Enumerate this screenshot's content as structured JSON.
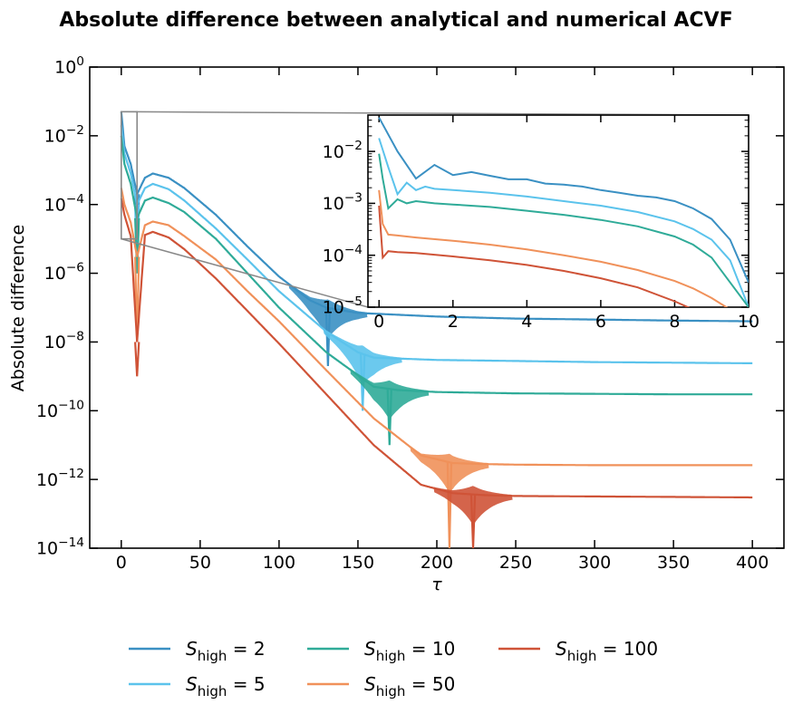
{
  "chart_data": [
    {
      "type": "line",
      "title": "Absolute difference between analytical and numerical ACVF",
      "xlabel": "τ",
      "ylabel": "Absolute difference",
      "xlim": [
        -20,
        420
      ],
      "ylim_log10": [
        -14,
        0
      ],
      "yscale": "log",
      "x_ticks": [
        0,
        50,
        100,
        150,
        200,
        250,
        300,
        350,
        400
      ],
      "x_tick_labels": [
        "0",
        "50",
        "100",
        "150",
        "200",
        "250",
        "300",
        "350",
        "400"
      ],
      "y_ticks_exp": [
        0,
        -2,
        -4,
        -6,
        -8,
        -10,
        -12,
        -14
      ],
      "y_tick_labels": [
        {
          "base": "10",
          "exp": "0"
        },
        {
          "base": "10",
          "exp": "−2"
        },
        {
          "base": "10",
          "exp": "−4"
        },
        {
          "base": "10",
          "exp": "−6"
        },
        {
          "base": "10",
          "exp": "−8"
        },
        {
          "base": "10",
          "exp": "−10"
        },
        {
          "base": "10",
          "exp": "−12"
        },
        {
          "base": "10",
          "exp": "−14"
        }
      ],
      "legend": {
        "placement": "below",
        "columns": 3
      },
      "series": [
        {
          "name": "S_high = 2",
          "label_main": "S",
          "label_sub": "high",
          "label_rest": " = 2",
          "color": "#3a90c3",
          "x": [
            0,
            2,
            6,
            10,
            15,
            20,
            30,
            40,
            60,
            80,
            100,
            120,
            130,
            150,
            200,
            250,
            300,
            350,
            400
          ],
          "y": [
            0.05,
            0.005,
            0.0015,
            0.0002,
            0.0006,
            0.0008,
            0.0006,
            0.0003,
            5e-05,
            6e-06,
            8e-07,
            1.6e-07,
            1e-07,
            7e-08,
            5.5e-08,
            4.8e-08,
            4.5e-08,
            4.2e-08,
            4e-08
          ],
          "dips": [
            [
              10,
              1e-06
            ],
            [
              131,
              2e-09
            ]
          ]
        },
        {
          "name": "S_high = 5",
          "label_main": "S",
          "label_sub": "high",
          "label_rest": " = 5",
          "color": "#5bc3ec",
          "x": [
            0,
            2,
            6,
            10,
            15,
            20,
            30,
            40,
            60,
            80,
            100,
            130,
            150,
            160,
            200,
            250,
            300,
            350,
            400
          ],
          "y": [
            0.02,
            0.003,
            0.0008,
            0.0001,
            0.0003,
            0.0004,
            0.00028,
            0.00013,
            2e-05,
            2.5e-06,
            3e-07,
            2e-08,
            5e-09,
            3.5e-09,
            3e-09,
            2.8e-09,
            2.6e-09,
            2.5e-09,
            2.4e-09
          ],
          "dips": [
            [
              10,
              1e-06
            ],
            [
              153,
              1e-10
            ]
          ]
        },
        {
          "name": "S_high = 10",
          "label_main": "S",
          "label_sub": "high",
          "label_rest": " = 10",
          "color": "#2fab98",
          "x": [
            0,
            2,
            6,
            10,
            15,
            20,
            30,
            40,
            60,
            80,
            100,
            130,
            160,
            175,
            200,
            250,
            300,
            350,
            400
          ],
          "y": [
            0.01,
            0.0015,
            0.0004,
            4e-05,
            0.00013,
            0.00016,
            0.00011,
            6e-05,
            1e-05,
            1e-06,
            1e-07,
            5e-09,
            5e-10,
            4e-10,
            3.5e-10,
            3.2e-10,
            3.1e-10,
            3e-10,
            3e-10
          ],
          "dips": [
            [
              10,
              1e-06
            ],
            [
              170,
              1e-11
            ]
          ]
        },
        {
          "name": "S_high = 50",
          "label_main": "S",
          "label_sub": "high",
          "label_rest": " = 50",
          "color": "#f0915a",
          "x": [
            0,
            2,
            6,
            10,
            15,
            20,
            30,
            40,
            60,
            80,
            100,
            130,
            160,
            190,
            210,
            230,
            250,
            300,
            350,
            400
          ],
          "y": [
            0.0003,
            0.0001,
            3e-05,
            3e-06,
            2.5e-05,
            3.2e-05,
            2.5e-05,
            1.2e-05,
            2.5e-06,
            3e-07,
            4e-08,
            1.5e-09,
            6e-11,
            5e-12,
            3e-12,
            2.8e-12,
            2.7e-12,
            2.6e-12,
            2.6e-12,
            2.6e-12
          ],
          "dips": [
            [
              10,
              1e-08
            ],
            [
              208,
              1e-14
            ]
          ]
        },
        {
          "name": "S_high = 100",
          "label_main": "S",
          "label_sub": "high",
          "label_rest": " = 100",
          "color": "#cf5337",
          "x": [
            0,
            2,
            6,
            10,
            15,
            20,
            30,
            40,
            60,
            80,
            100,
            130,
            160,
            190,
            210,
            230,
            250,
            300,
            350,
            400
          ],
          "y": [
            0.00015,
            5e-05,
            1.2e-05,
            1e-08,
            1.3e-05,
            1.6e-05,
            1.1e-05,
            5e-06,
            7e-07,
            8e-08,
            9e-09,
            3e-10,
            1e-11,
            7e-13,
            4e-13,
            3.5e-13,
            3.3e-13,
            3.2e-13,
            3.1e-13,
            3e-13
          ],
          "dips": [
            [
              10,
              1e-09
            ],
            [
              223,
              1e-14
            ]
          ]
        }
      ]
    },
    {
      "type": "line",
      "title": "",
      "xlim": [
        -0.3,
        10
      ],
      "ylim_log10": [
        -5,
        -1.3
      ],
      "yscale": "log",
      "x_ticks": [
        0,
        2,
        4,
        6,
        8,
        10
      ],
      "x_tick_labels": [
        "0",
        "2",
        "4",
        "6",
        "8",
        "10"
      ],
      "y_ticks_exp": [
        -2,
        -3,
        -4,
        -5
      ],
      "y_tick_labels": [
        {
          "base": "10",
          "exp": "−2"
        },
        {
          "base": "10",
          "exp": "−3"
        },
        {
          "base": "10",
          "exp": "−4"
        },
        {
          "base": "10",
          "exp": "−5"
        }
      ],
      "series": [
        {
          "color": "#3a90c3",
          "x": [
            0,
            0.5,
            1,
            1.5,
            2,
            2.5,
            3,
            3.5,
            4,
            4.5,
            5,
            5.5,
            6,
            6.5,
            7,
            7.5,
            8,
            8.5,
            9,
            9.5,
            10
          ],
          "y": [
            0.045,
            0.01,
            0.003,
            0.0055,
            0.0035,
            0.004,
            0.0034,
            0.0029,
            0.0029,
            0.0024,
            0.0023,
            0.0021,
            0.0018,
            0.0016,
            0.0014,
            0.0013,
            0.0011,
            0.0008,
            0.0005,
            0.0002,
            3e-05
          ]
        },
        {
          "color": "#5bc3ec",
          "x": [
            0,
            0.25,
            0.5,
            0.75,
            1,
            1.25,
            1.5,
            2,
            2.5,
            3,
            4,
            5,
            6,
            7,
            8,
            8.5,
            9,
            9.5,
            10
          ],
          "y": [
            0.018,
            0.005,
            0.0015,
            0.0025,
            0.0018,
            0.0021,
            0.0019,
            0.0018,
            0.0017,
            0.0016,
            0.00135,
            0.0011,
            0.0009,
            0.00068,
            0.00045,
            0.00032,
            0.0002,
            8e-05,
            1e-05
          ]
        },
        {
          "color": "#2fab98",
          "x": [
            0,
            0.1,
            0.25,
            0.5,
            0.75,
            1,
            1.5,
            2,
            3,
            4,
            5,
            6,
            7,
            8,
            8.5,
            9,
            9.5,
            10
          ],
          "y": [
            0.009,
            0.003,
            0.0008,
            0.0012,
            0.001,
            0.0011,
            0.001,
            0.00095,
            0.00085,
            0.00072,
            0.0006,
            0.00048,
            0.00036,
            0.00023,
            0.00016,
            9e-05,
            3e-05,
            1e-05
          ]
        },
        {
          "color": "#f0915a",
          "x": [
            0,
            0.1,
            0.25,
            0.5,
            1,
            2,
            3,
            4,
            5,
            6,
            7,
            8,
            8.5,
            9,
            9.5
          ],
          "y": [
            0.0018,
            0.0004,
            0.00025,
            0.00024,
            0.00022,
            0.00019,
            0.00016,
            0.00013,
            0.0001,
            7.5e-05,
            5.2e-05,
            3.2e-05,
            2.3e-05,
            1.5e-05,
            9e-06
          ]
        },
        {
          "color": "#cf5337",
          "x": [
            0,
            0.1,
            0.25,
            0.5,
            1,
            2,
            3,
            4,
            5,
            6,
            7,
            8,
            8.5
          ],
          "y": [
            0.0009,
            9e-05,
            0.00012,
            0.000115,
            0.00011,
            9.5e-05,
            8e-05,
            6.5e-05,
            5e-05,
            3.6e-05,
            2.4e-05,
            1.3e-05,
            9e-06
          ]
        }
      ]
    }
  ]
}
